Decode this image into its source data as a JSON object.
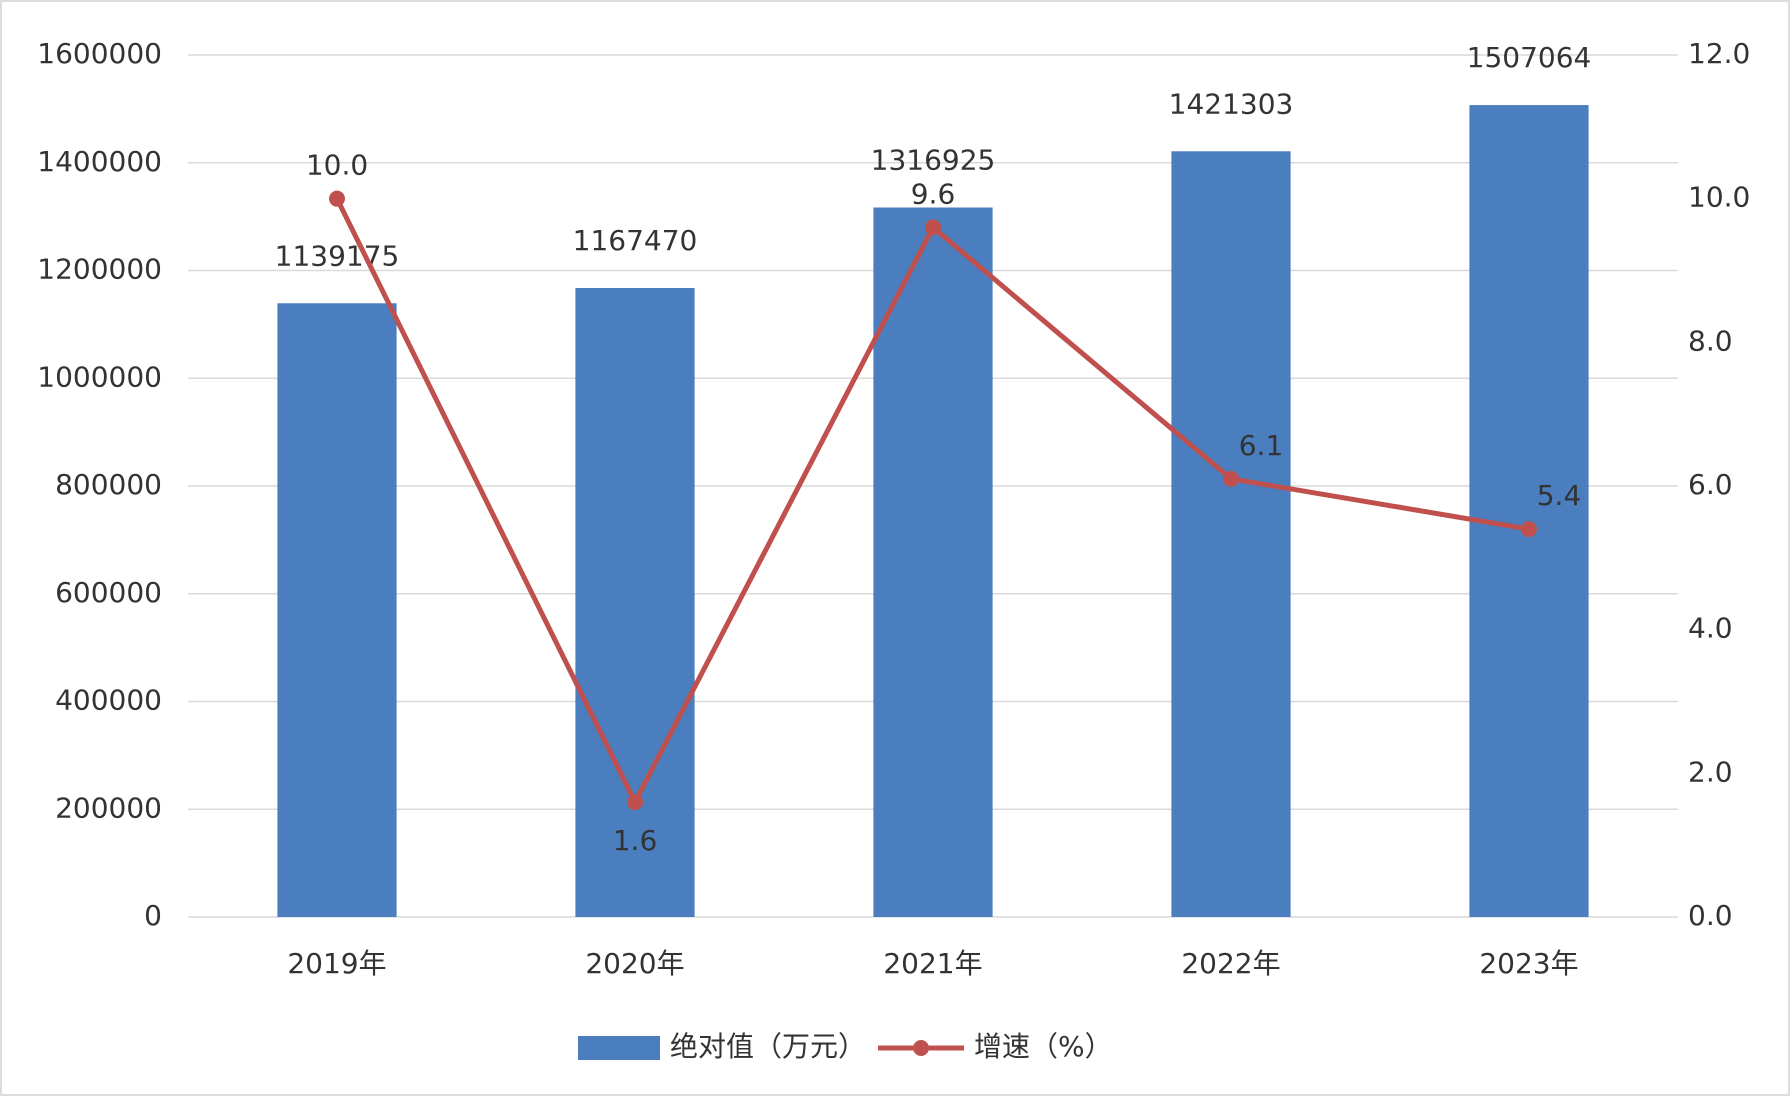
{
  "chart_data": {
    "type": "bar",
    "categories": [
      "2019年",
      "2020年",
      "2021年",
      "2022年",
      "2023年"
    ],
    "series": [
      {
        "name": "绝对值（万元）",
        "color": "#4a7ebf",
        "values": [
          1139175,
          1167470,
          1316925,
          1421303,
          1507064
        ]
      },
      {
        "name": "增速（%）",
        "type": "line",
        "axis": "y2",
        "color": "#c0504d",
        "values": [
          10.0,
          1.6,
          9.6,
          6.1,
          5.4
        ],
        "value_labels": [
          "10.0",
          "1.6",
          "9.6",
          "6.1",
          "5.4"
        ]
      }
    ],
    "ylim": [
      0,
      1600000
    ],
    "yticks": [
      0,
      200000,
      400000,
      600000,
      800000,
      1000000,
      1200000,
      1400000,
      1600000
    ],
    "y2lim": [
      0,
      12
    ],
    "y2ticks": [
      {
        "value": 0,
        "label": "0.0"
      },
      {
        "value": 2,
        "label": "2.0"
      },
      {
        "value": 4,
        "label": "4.0"
      },
      {
        "value": 6,
        "label": "6.0"
      },
      {
        "value": 8,
        "label": "8.0"
      },
      {
        "value": 10,
        "label": "10.0"
      },
      {
        "value": 12,
        "label": "12.0"
      }
    ],
    "grid": true,
    "legend": "bottom"
  }
}
